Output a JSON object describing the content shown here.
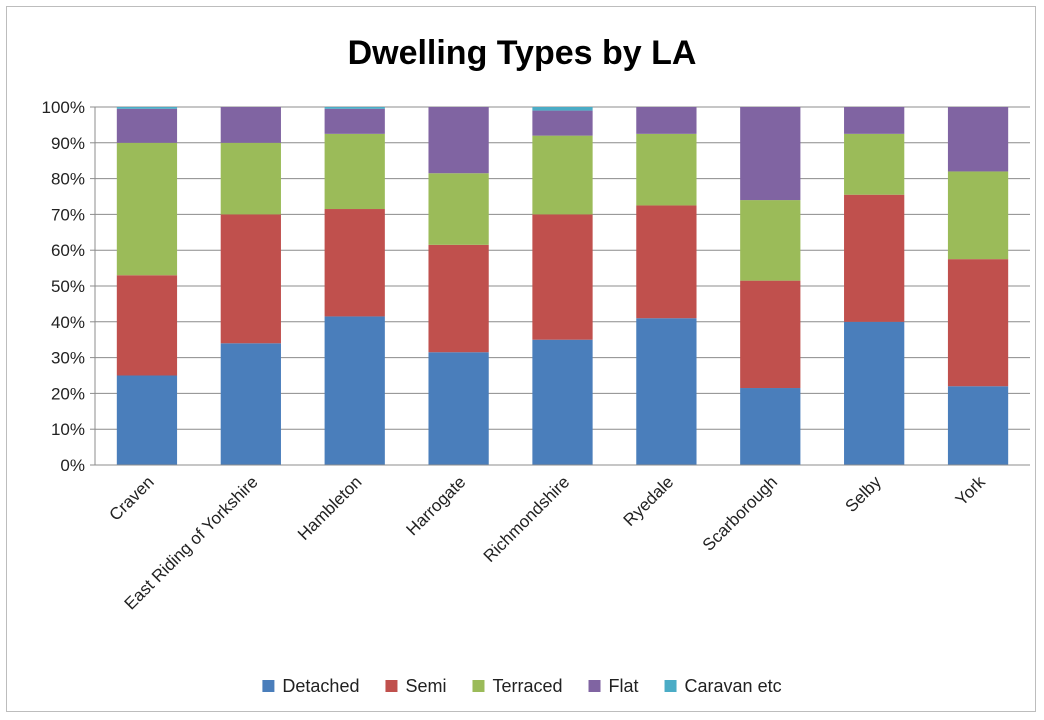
{
  "chart_data": {
    "type": "bar",
    "stacked": "percent",
    "title": "Dwelling Types by LA",
    "xlabel": "",
    "ylabel": "",
    "ylim": [
      0,
      100
    ],
    "yticks": [
      "0%",
      "10%",
      "20%",
      "30%",
      "40%",
      "50%",
      "60%",
      "70%",
      "80%",
      "90%",
      "100%"
    ],
    "grid": true,
    "legend": "bottom",
    "categories": [
      "Craven",
      "East Riding of Yorkshire",
      "Hambleton",
      "Harrogate",
      "Richmondshire",
      "Ryedale",
      "Scarborough",
      "Selby",
      "York"
    ],
    "series": [
      {
        "name": "Detached",
        "color": "#4a7ebb",
        "values": [
          25,
          34,
          41.5,
          31.5,
          35,
          41,
          21.5,
          40,
          22
        ]
      },
      {
        "name": "Semi",
        "color": "#c0504d",
        "values": [
          28,
          36,
          30,
          30,
          35,
          31.5,
          30,
          35.5,
          35.5
        ]
      },
      {
        "name": "Terraced",
        "color": "#9bbb59",
        "values": [
          37,
          20,
          21,
          20,
          22,
          20,
          22.5,
          17,
          24.5
        ]
      },
      {
        "name": "Flat",
        "color": "#8064a2",
        "values": [
          9.5,
          10,
          7,
          18.5,
          7,
          7.5,
          26,
          7.5,
          18
        ]
      },
      {
        "name": "Caravan etc",
        "color": "#4bacc6",
        "values": [
          0.5,
          0,
          0.5,
          0,
          1,
          0,
          0,
          0,
          0
        ]
      }
    ]
  }
}
